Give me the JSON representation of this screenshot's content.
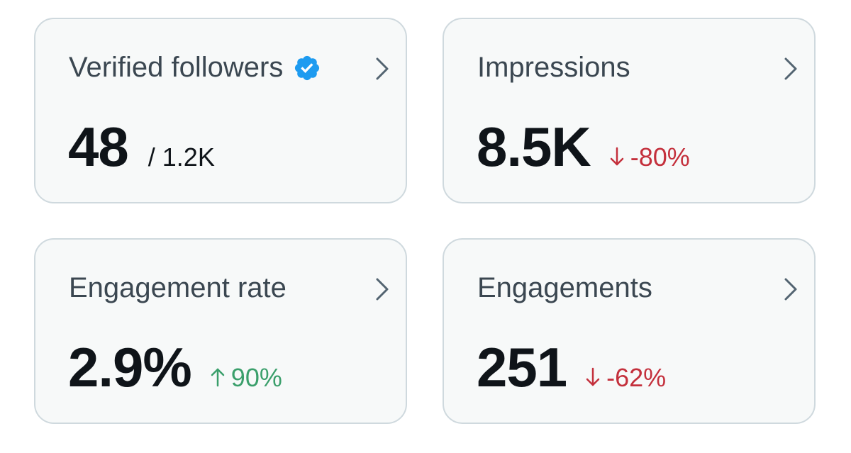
{
  "colors": {
    "card_bg": "#f7f9f9",
    "card_border": "#cfd9de",
    "title": "#3b4751",
    "value": "#0f1419",
    "negative": "#c4303c",
    "positive": "#3a9f6b",
    "verified_badge": "#1d9bf0",
    "chevron": "#536471"
  },
  "cards": [
    {
      "title": "Verified followers",
      "value": "48",
      "secondary": "/ 1.2K",
      "icon": "verified-badge-icon"
    },
    {
      "title": "Impressions",
      "value": "8.5K",
      "delta": "-80%",
      "delta_direction": "down"
    },
    {
      "title": "Engagement rate",
      "value": "2.9%",
      "delta": "90%",
      "delta_direction": "up"
    },
    {
      "title": "Engagements",
      "value": "251",
      "delta": "-62%",
      "delta_direction": "down"
    }
  ]
}
